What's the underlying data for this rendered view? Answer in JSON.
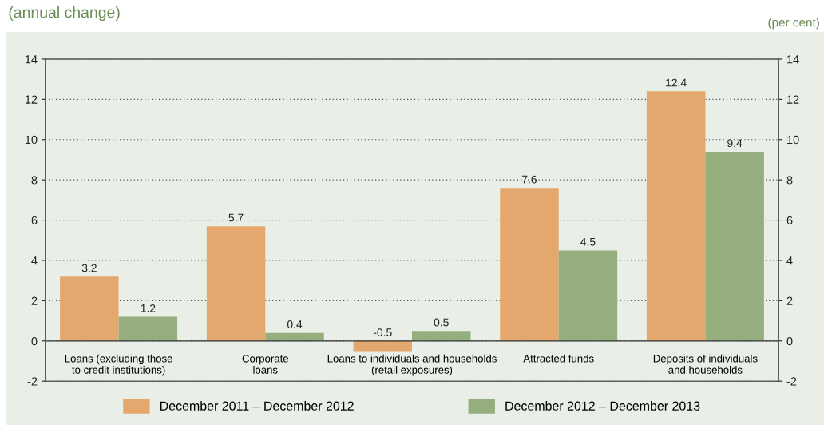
{
  "chart_data": {
    "type": "bar",
    "title": "(annual change)",
    "annotations": [
      "(per cent)"
    ],
    "categories": [
      "Loans (excluding those\nto credit institutions)",
      "Corporate\nloans",
      "Loans to individuals and households\n(retail exposures)",
      "Attracted funds",
      "Deposits of individuals\nand households"
    ],
    "series": [
      {
        "name": "December 2011 – December 2012",
        "color": "#e4a76d",
        "values": [
          3.2,
          5.7,
          -0.5,
          7.6,
          12.4
        ]
      },
      {
        "name": "December 2012 – December 2013",
        "color": "#94ae7d",
        "values": [
          1.2,
          0.4,
          0.5,
          4.5,
          9.4
        ]
      }
    ],
    "ylim": [
      -2,
      14
    ],
    "yticks": [
      -2,
      0,
      2,
      4,
      6,
      8,
      10,
      12,
      14
    ],
    "y2lim": [
      -2,
      14
    ],
    "y2ticks": [
      -2,
      0,
      2,
      4,
      6,
      8,
      10,
      12,
      14
    ],
    "grid": "y",
    "legend": "bottom",
    "data_labels": true
  }
}
